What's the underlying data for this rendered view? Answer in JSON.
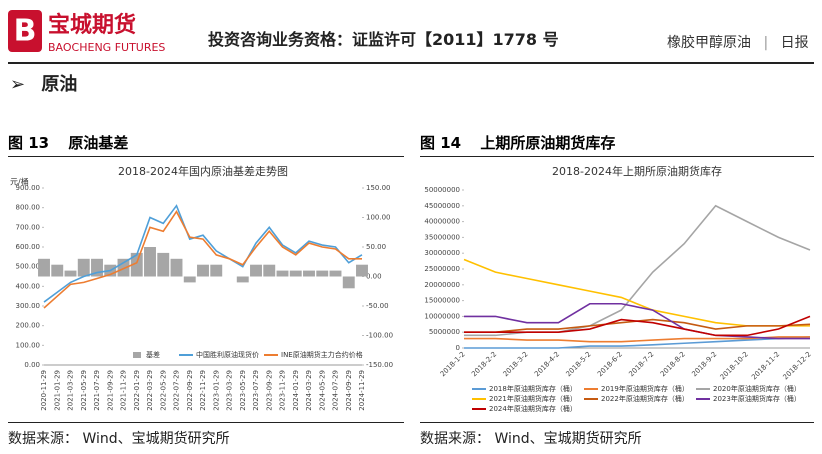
{
  "header": {
    "logo_cn": "宝城期货",
    "logo_en": "BAOCHENG FUTURES",
    "qualification": "投资咨询业务资格：证监许可【2011】1778 号",
    "product": "橡胶甲醇原油",
    "separator": "|",
    "report_type": "日报"
  },
  "section": {
    "marker": "➢",
    "title": "原油"
  },
  "figures": [
    {
      "label": "图 13",
      "caption": "原油基差",
      "source": "数据来源： Wind、宝城期货研究所",
      "chart_data": {
        "type": "line",
        "title": "2018-2024年国内原油基差走势图",
        "y_unit": "元/桶",
        "grid": false,
        "categories": [
          "2020-11-29",
          "2021-01-29",
          "2021-03-29",
          "2021-05-29",
          "2021-07-29",
          "2021-09-29",
          "2021-11-29",
          "2022-01-29",
          "2022-03-29",
          "2022-05-29",
          "2022-07-29",
          "2022-09-29",
          "2022-11-29",
          "2023-01-29",
          "2023-03-29",
          "2023-05-29",
          "2023-07-29",
          "2023-09-29",
          "2023-11-29",
          "2024-01-29",
          "2024-03-29",
          "2024-05-29",
          "2024-07-29",
          "2024-09-29",
          "2024-11-29"
        ],
        "ylim": [
          0,
          900
        ],
        "yticks": [
          {
            "value": 0,
            "label": "0.00"
          },
          {
            "value": 100,
            "label": "100.00"
          },
          {
            "value": 200,
            "label": "200.00"
          },
          {
            "value": 300,
            "label": "300.00"
          },
          {
            "value": 400,
            "label": "400.00"
          },
          {
            "value": 500,
            "label": "500.00"
          },
          {
            "value": 600,
            "label": "600.00"
          },
          {
            "value": 700,
            "label": "700.00"
          },
          {
            "value": 800,
            "label": "800.00"
          },
          {
            "value": 900,
            "label": "900.00"
          }
        ],
        "y2lim": [
          -150,
          150
        ],
        "y2ticks": [
          {
            "value": -150,
            "label": "-150.00"
          },
          {
            "value": -100,
            "label": "-100.00"
          },
          {
            "value": -50,
            "label": "-50.00"
          },
          {
            "value": 0,
            "label": "0.00"
          },
          {
            "value": 50,
            "label": "50.00"
          },
          {
            "value": 100,
            "label": "100.00"
          },
          {
            "value": 150,
            "label": "150.00"
          }
        ],
        "series": [
          {
            "name": "基差",
            "type": "bar",
            "axis": "y2",
            "color": "#a6a6a6",
            "values": [
              30,
              20,
              10,
              30,
              30,
              20,
              30,
              40,
              50,
              40,
              30,
              -10,
              20,
              20,
              0,
              -10,
              20,
              20,
              10,
              10,
              10,
              10,
              10,
              -20,
              20
            ]
          },
          {
            "name": "中国胜利原油现货价",
            "color": "#4f9fd8",
            "values": [
              320,
              370,
              420,
              450,
              470,
              480,
              520,
              560,
              750,
              720,
              810,
              640,
              660,
              580,
              540,
              500,
              620,
              700,
              610,
              570,
              630,
              610,
              600,
              520,
              560
            ]
          },
          {
            "name": "INE原油期货主力合约价格",
            "color": "#ed7d31",
            "values": [
              290,
              350,
              410,
              420,
              440,
              460,
              490,
              520,
              700,
              680,
              780,
              650,
              640,
              560,
              540,
              510,
              600,
              680,
              600,
              560,
              620,
              600,
              590,
              540,
              540
            ]
          }
        ]
      }
    },
    {
      "label": "图 14",
      "caption": "上期所原油期货库存",
      "source": "数据来源： Wind、宝城期货研究所",
      "chart_data": {
        "type": "line",
        "title": "2018-2024年上期所原油期货库存",
        "grid": false,
        "categories": [
          "2018-1-2",
          "2018-2-2",
          "2018-3-2",
          "2018-4-2",
          "2018-5-2",
          "2018-6-2",
          "2018-7-2",
          "2018-8-2",
          "2018-9-2",
          "2018-10-2",
          "2018-11-2",
          "2018-12-2"
        ],
        "ylim": [
          0,
          50000000
        ],
        "yticks": [
          0,
          5000000,
          10000000,
          15000000,
          20000000,
          25000000,
          30000000,
          35000000,
          40000000,
          45000000,
          50000000
        ],
        "series": [
          {
            "name": "2018年原油期货库存（桶）",
            "color": "#5b9bd5",
            "values": [
              0,
              0,
              0,
              0,
              600000,
              600000,
              1000000,
              1500000,
              2000000,
              2500000,
              3000000,
              3500000
            ]
          },
          {
            "name": "2019年原油期货库存（桶）",
            "color": "#ed7d31",
            "values": [
              3000000,
              3000000,
              2500000,
              2500000,
              2000000,
              2000000,
              2500000,
              3000000,
              3000000,
              3000000,
              3500000,
              3500000
            ]
          },
          {
            "name": "2020年原油期货库存（桶）",
            "color": "#a5a5a5",
            "values": [
              4000000,
              4000000,
              5000000,
              5000000,
              7000000,
              12000000,
              24000000,
              33000000,
              45000000,
              40000000,
              35000000,
              31000000
            ]
          },
          {
            "name": "2021年原油期货库存（桶）",
            "color": "#ffc000",
            "values": [
              28000000,
              24000000,
              22000000,
              20000000,
              18000000,
              16000000,
              12000000,
              10000000,
              8000000,
              7000000,
              7000000,
              7000000
            ]
          },
          {
            "name": "2022年原油期货库存（桶）",
            "color": "#c55a11",
            "values": [
              5000000,
              5000000,
              6000000,
              6000000,
              7000000,
              8000000,
              9000000,
              8000000,
              6000000,
              7000000,
              7000000,
              7500000
            ]
          },
          {
            "name": "2023年原油期货库存（桶）",
            "color": "#7030a0",
            "values": [
              10000000,
              10000000,
              8000000,
              8000000,
              14000000,
              14000000,
              12000000,
              6000000,
              4000000,
              3500000,
              3000000,
              3000000
            ]
          },
          {
            "name": "2024年原油期货库存（桶）",
            "color": "#c00000",
            "values": [
              5000000,
              5000000,
              5000000,
              5000000,
              6000000,
              9000000,
              8000000,
              6000000,
              4000000,
              4000000,
              6000000,
              10000000
            ]
          }
        ]
      }
    }
  ]
}
